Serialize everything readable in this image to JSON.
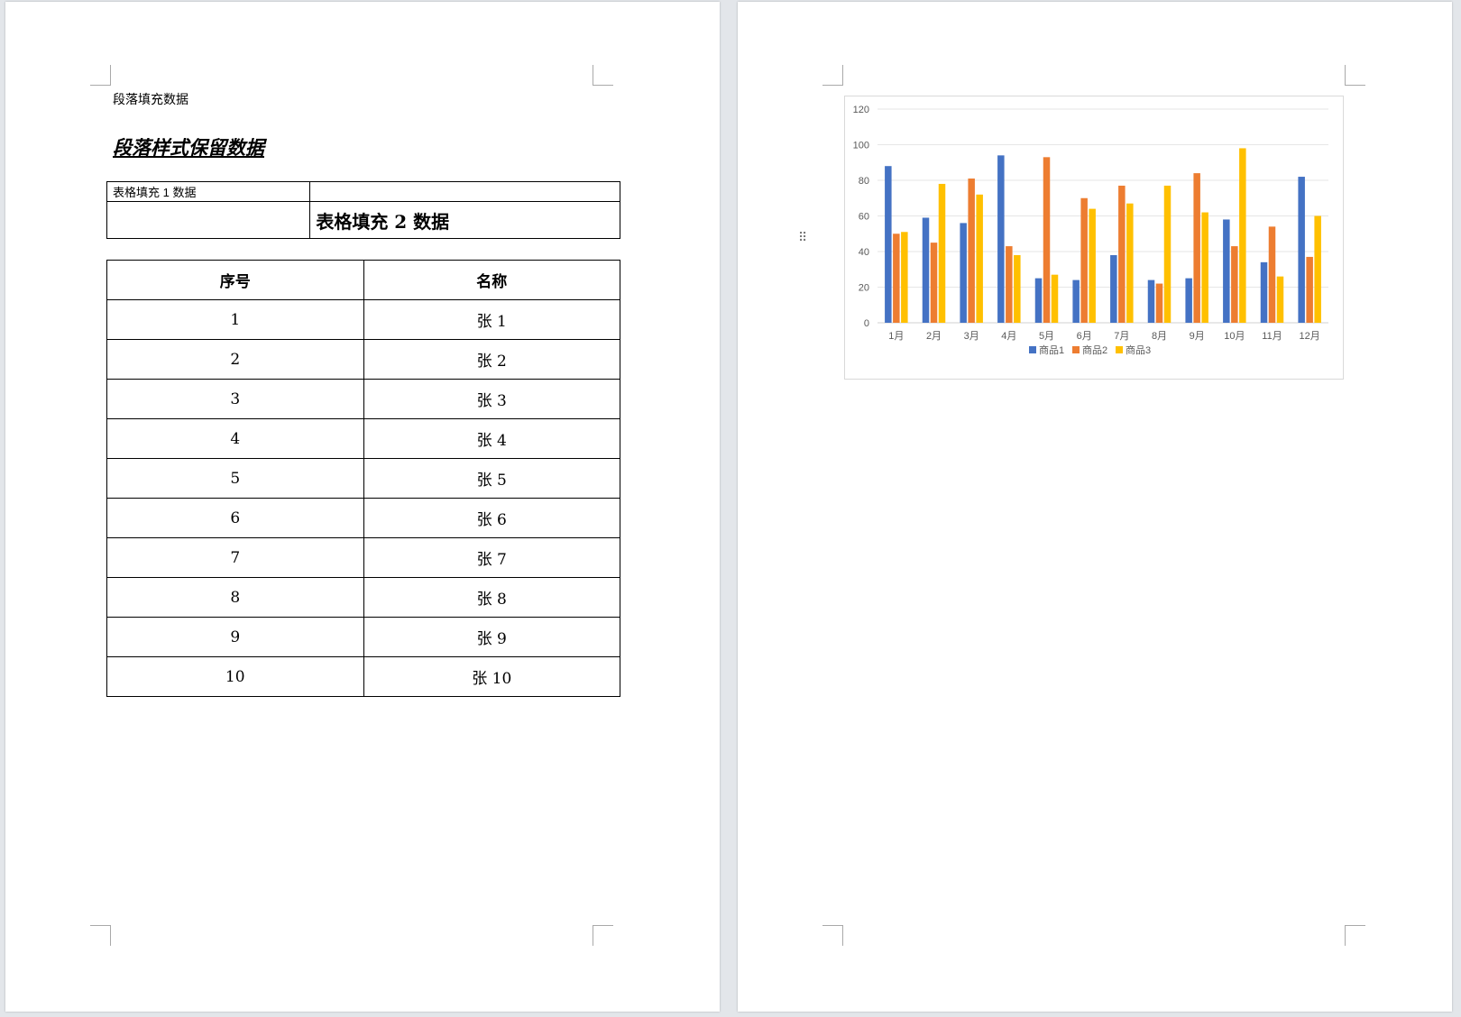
{
  "left_page": {
    "paragraph_fill": "段落填充数据",
    "paragraph_style": "段落样式保留数据",
    "fill_table": {
      "cell_1": "表格填充 1 数据",
      "cell_2": "表格填充 2 数据"
    },
    "list_table": {
      "headers": [
        "序号",
        "名称"
      ],
      "rows": [
        [
          "1",
          "张 1"
        ],
        [
          "2",
          "张 2"
        ],
        [
          "3",
          "张 3"
        ],
        [
          "4",
          "张 4"
        ],
        [
          "5",
          "张 5"
        ],
        [
          "6",
          "张 6"
        ],
        [
          "7",
          "张 7"
        ],
        [
          "8",
          "张 8"
        ],
        [
          "9",
          "张 9"
        ],
        [
          "10",
          "张 10"
        ]
      ]
    }
  },
  "right_page": {
    "drag_handle_glyph": "⠿",
    "chart_data": {
      "type": "bar",
      "categories": [
        "1月",
        "2月",
        "3月",
        "4月",
        "5月",
        "6月",
        "7月",
        "8月",
        "9月",
        "10月",
        "11月",
        "12月"
      ],
      "series": [
        {
          "name": "商品1",
          "color": "#4472c4",
          "values": [
            88,
            59,
            56,
            94,
            25,
            24,
            38,
            24,
            25,
            58,
            34,
            82
          ]
        },
        {
          "name": "商品2",
          "color": "#ed7d31",
          "values": [
            50,
            45,
            81,
            43,
            93,
            70,
            77,
            22,
            84,
            43,
            54,
            37
          ]
        },
        {
          "name": "商品3",
          "color": "#ffc000",
          "values": [
            51,
            78,
            72,
            38,
            27,
            64,
            67,
            77,
            62,
            98,
            26,
            60
          ]
        }
      ],
      "yticks": [
        "0",
        "20",
        "40",
        "60",
        "80",
        "100",
        "120"
      ],
      "ylim": [
        0,
        120
      ],
      "grid": true,
      "legend_position": "bottom"
    }
  }
}
